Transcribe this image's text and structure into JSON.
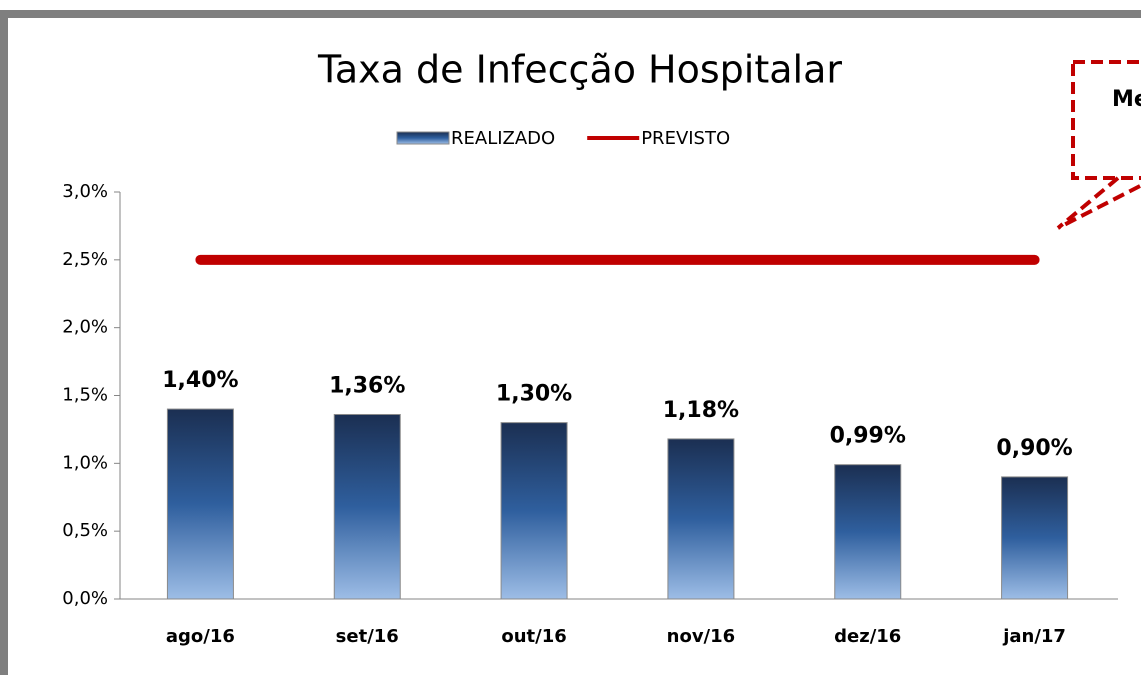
{
  "chart_data": {
    "type": "bar",
    "title": "Taxa de Infecção Hospitalar",
    "categories": [
      "ago/16",
      "set/16",
      "out/16",
      "nov/16",
      "dez/16",
      "jan/17"
    ],
    "series": [
      {
        "name": "REALIZADO",
        "type": "bar",
        "color": "#2f5f9e",
        "values": [
          1.4,
          1.36,
          1.3,
          1.18,
          0.99,
          0.9
        ],
        "value_labels": [
          "1,40%",
          "1,36%",
          "1,30%",
          "1,18%",
          "0,99%",
          "0,90%"
        ]
      },
      {
        "name": "PREVISTO",
        "type": "line",
        "color": "#c00000",
        "values": [
          2.5,
          2.5,
          2.5,
          2.5,
          2.5,
          2.5
        ]
      }
    ],
    "ylim": [
      0,
      3
    ],
    "yticks": [
      {
        "value": 0,
        "label": "0,0%"
      },
      {
        "value": 0.5,
        "label": "0,5%"
      },
      {
        "value": 1,
        "label": "1,0%"
      },
      {
        "value": 1.5,
        "label": "1,5%"
      },
      {
        "value": 2,
        "label": "2,0%"
      },
      {
        "value": 2.5,
        "label": "2,5%"
      },
      {
        "value": 3,
        "label": "3,0%"
      }
    ],
    "legend": "top",
    "annotation": "Me"
  }
}
